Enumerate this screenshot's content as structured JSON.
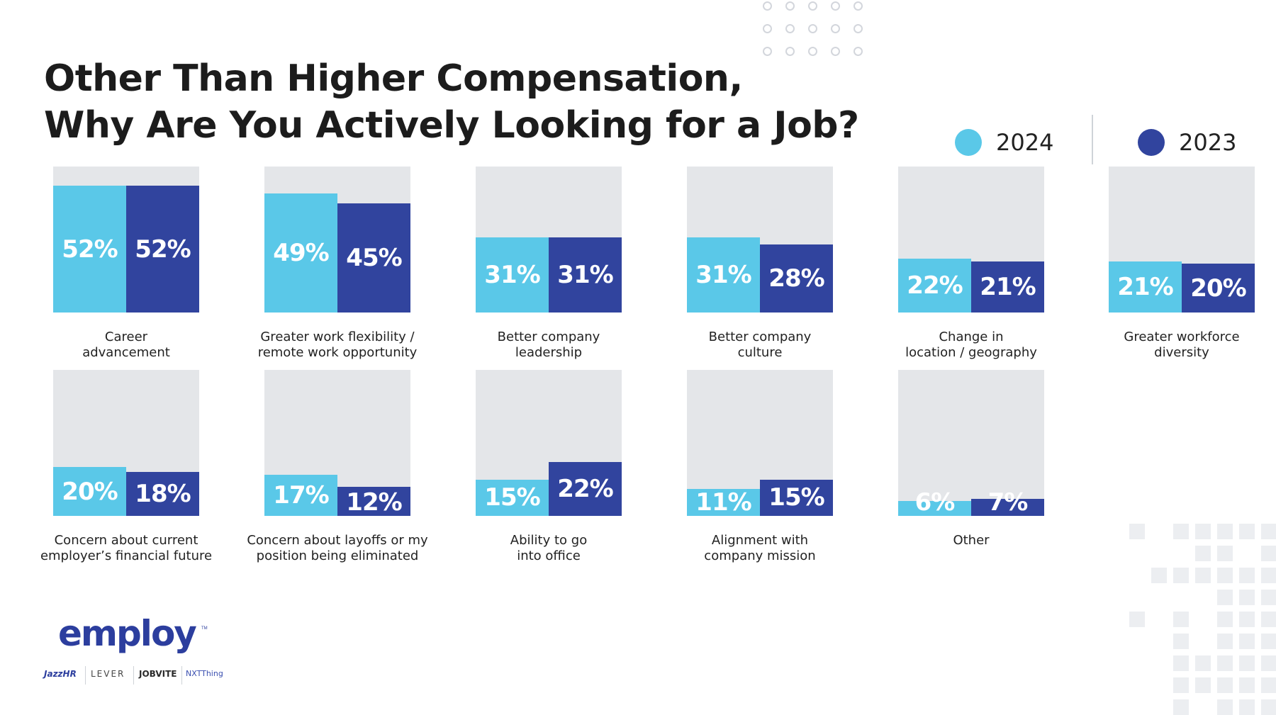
{
  "title_lines": [
    "Other Than Higher Compensation,",
    "Why Are You Actively Looking for a Job?"
  ],
  "colors": {
    "2024": "#5ac8e8",
    "2023": "#31449e",
    "panel": "#e4e6e9"
  },
  "legend": [
    {
      "label": "2024",
      "color": "#5ac8e8"
    },
    {
      "label": "2023",
      "color": "#31449e"
    }
  ],
  "chart_data": {
    "type": "bar",
    "title": "Other Than Higher Compensation, Why Are You Actively Looking for a Job?",
    "ylim": [
      0,
      60
    ],
    "unit": "%",
    "series": [
      {
        "name": "2024",
        "values": [
          52,
          49,
          31,
          31,
          22,
          21,
          20,
          17,
          15,
          11,
          6
        ]
      },
      {
        "name": "2023",
        "values": [
          52,
          45,
          31,
          28,
          21,
          20,
          18,
          12,
          22,
          15,
          7
        ]
      }
    ],
    "categories": [
      {
        "lines": [
          "Career",
          "advancement"
        ],
        "v2024": 52,
        "v2023": 52,
        "l2024": "52%",
        "l2023": "52%"
      },
      {
        "lines": [
          "Greater work flexibility /",
          "remote work opportunity"
        ],
        "v2024": 49,
        "v2023": 45,
        "l2024": "49%",
        "l2023": "45%"
      },
      {
        "lines": [
          "Better company",
          "leadership"
        ],
        "v2024": 31,
        "v2023": 31,
        "l2024": "31%",
        "l2023": "31%"
      },
      {
        "lines": [
          "Better company",
          "culture"
        ],
        "v2024": 31,
        "v2023": 28,
        "l2024": "31%",
        "l2023": "28%"
      },
      {
        "lines": [
          "Change in",
          "location / geography"
        ],
        "v2024": 22,
        "v2023": 21,
        "l2024": "22%",
        "l2023": "21%"
      },
      {
        "lines": [
          "Greater workforce",
          "diversity"
        ],
        "v2024": 21,
        "v2023": 20,
        "l2024": "21%",
        "l2023": "20%"
      },
      {
        "lines": [
          "Concern about current",
          "employer’s financial future"
        ],
        "v2024": 20,
        "v2023": 18,
        "l2024": "20%",
        "l2023": "18%"
      },
      {
        "lines": [
          "Concern about layoffs or my",
          "position being eliminated"
        ],
        "v2024": 17,
        "v2023": 12,
        "l2024": "17%",
        "l2023": "12%"
      },
      {
        "lines": [
          "Ability to go",
          "into office"
        ],
        "v2024": 15,
        "v2023": 22,
        "l2024": "15%",
        "l2023": "22%"
      },
      {
        "lines": [
          "Alignment with",
          "company mission"
        ],
        "v2024": 11,
        "v2023": 15,
        "l2024": "11%",
        "l2023": "15%"
      },
      {
        "lines": [
          "Other"
        ],
        "v2024": 6,
        "v2023": 7,
        "l2024": "6%",
        "l2023": "7%"
      }
    ]
  },
  "logo": {
    "text": "employ",
    "tm": "TM"
  },
  "brands": [
    "JazzHR",
    "LEVER",
    "JOBVITE",
    "NXTThing"
  ]
}
